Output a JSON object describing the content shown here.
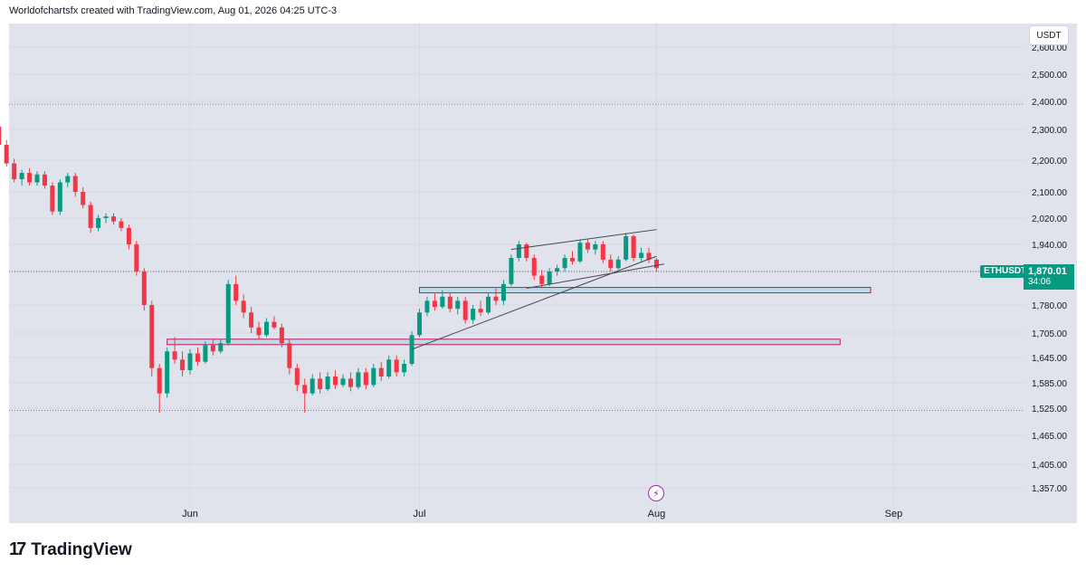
{
  "header": {
    "text": "Worldofchartsfx created with TradingView.com, Aug 01, 2026 04:25 UTC-3"
  },
  "currency_button": "USDT",
  "price_badge": {
    "symbol": "ETHUSDT",
    "price": "1,870.01",
    "countdown": "34:06",
    "color": "#089981"
  },
  "brand": {
    "name": "TradingView",
    "icon": "tradingview-logo-icon"
  },
  "event_icon": "lightning-event-icon",
  "colors": {
    "up": "#089981",
    "down": "#f23645",
    "background": "#e0e3eb",
    "zone": "#add8e6",
    "zone_border": "#c2185b"
  },
  "chart_data": {
    "type": "candlestick",
    "symbol": "ETHUSDT",
    "y_ticks": [
      "2,600.00",
      "2,500.00",
      "2,400.00",
      "2,300.00",
      "2,200.00",
      "2,100.00",
      "2,020.00",
      "1,940.00",
      "1,860.00",
      "1,780.00",
      "1,705.00",
      "1,645.00",
      "1,585.00",
      "1,525.00",
      "1,465.00",
      "1,405.00",
      "1,357.00"
    ],
    "x_ticks": [
      "Jun",
      "Jul",
      "Aug",
      "Sep"
    ],
    "last_price": 1870.01,
    "horizontal_levels": [
      2390,
      1520
    ],
    "zones": [
      {
        "name": "upper-support-zone",
        "x_start": "2026-07-01",
        "x_end": "2026-08-29",
        "y_low": 1810,
        "y_high": 1822
      },
      {
        "name": "lower-support-zone",
        "x_start": "2026-05-29",
        "x_end": "2026-08-25",
        "y_low": 1680,
        "y_high": 1690
      }
    ],
    "trendlines": [
      {
        "name": "upper-channel-line",
        "start": [
          "2026-07-13",
          1925
        ],
        "end": [
          "2026-08-01",
          1985
        ]
      },
      {
        "name": "rising-support-line",
        "start": [
          "2026-06-30",
          1665
        ],
        "end": [
          "2026-08-01",
          1905
        ]
      },
      {
        "name": "lower-channel-line",
        "start": [
          "2026-07-15",
          1820
        ],
        "end": [
          "2026-08-02",
          1882
        ]
      }
    ],
    "candles": [
      [
        "2026-05-02",
        2340,
        2370,
        2380,
        2330
      ],
      [
        "2026-05-03",
        2370,
        2380,
        2400,
        2355
      ],
      [
        "2026-05-04",
        2380,
        2330,
        2390,
        2320
      ],
      [
        "2026-05-05",
        2330,
        2270,
        2340,
        2255
      ],
      [
        "2026-05-06",
        2270,
        2310,
        2325,
        2260
      ],
      [
        "2026-05-07",
        2310,
        2250,
        2320,
        2240
      ],
      [
        "2026-05-08",
        2250,
        2190,
        2265,
        2180
      ],
      [
        "2026-05-09",
        2190,
        2140,
        2205,
        2130
      ],
      [
        "2026-05-10",
        2140,
        2160,
        2170,
        2120
      ],
      [
        "2026-05-11",
        2160,
        2130,
        2175,
        2120
      ],
      [
        "2026-05-12",
        2130,
        2155,
        2165,
        2120
      ],
      [
        "2026-05-13",
        2155,
        2120,
        2165,
        2110
      ],
      [
        "2026-05-14",
        2120,
        2040,
        2130,
        2030
      ],
      [
        "2026-05-15",
        2040,
        2130,
        2140,
        2030
      ],
      [
        "2026-05-16",
        2130,
        2150,
        2160,
        2115
      ],
      [
        "2026-05-17",
        2150,
        2100,
        2160,
        2085
      ],
      [
        "2026-05-18",
        2100,
        2060,
        2115,
        2050
      ],
      [
        "2026-05-19",
        2060,
        1990,
        2070,
        1975
      ],
      [
        "2026-05-20",
        1990,
        2020,
        2030,
        1980
      ],
      [
        "2026-05-21",
        2020,
        2025,
        2035,
        2005
      ],
      [
        "2026-05-22",
        2025,
        2010,
        2035,
        2000
      ],
      [
        "2026-05-23",
        2010,
        1990,
        2020,
        1980
      ],
      [
        "2026-05-24",
        1990,
        1940,
        2000,
        1925
      ],
      [
        "2026-05-25",
        1940,
        1860,
        1950,
        1850
      ],
      [
        "2026-05-26",
        1860,
        1780,
        1870,
        1765
      ],
      [
        "2026-05-27",
        1780,
        1620,
        1790,
        1600
      ],
      [
        "2026-05-28",
        1620,
        1560,
        1630,
        1515
      ],
      [
        "2026-05-29",
        1560,
        1660,
        1670,
        1550
      ],
      [
        "2026-05-30",
        1660,
        1640,
        1695,
        1630
      ],
      [
        "2026-05-31",
        1640,
        1615,
        1660,
        1600
      ],
      [
        "2026-06-01",
        1615,
        1655,
        1665,
        1605
      ],
      [
        "2026-06-02",
        1655,
        1635,
        1670,
        1625
      ],
      [
        "2026-06-03",
        1635,
        1675,
        1685,
        1630
      ],
      [
        "2026-06-04",
        1675,
        1660,
        1690,
        1650
      ],
      [
        "2026-06-05",
        1660,
        1680,
        1690,
        1655
      ],
      [
        "2026-06-06",
        1680,
        1830,
        1840,
        1675
      ],
      [
        "2026-06-07",
        1830,
        1790,
        1850,
        1780
      ],
      [
        "2026-06-08",
        1790,
        1760,
        1805,
        1745
      ],
      [
        "2026-06-09",
        1760,
        1720,
        1775,
        1705
      ],
      [
        "2026-06-10",
        1720,
        1700,
        1735,
        1690
      ],
      [
        "2026-06-11",
        1700,
        1735,
        1745,
        1695
      ],
      [
        "2026-06-12",
        1735,
        1720,
        1750,
        1715
      ],
      [
        "2026-06-13",
        1720,
        1680,
        1730,
        1670
      ],
      [
        "2026-06-14",
        1680,
        1620,
        1690,
        1605
      ],
      [
        "2026-06-15",
        1620,
        1580,
        1630,
        1565
      ],
      [
        "2026-06-16",
        1580,
        1560,
        1595,
        1515
      ],
      [
        "2026-06-17",
        1560,
        1595,
        1605,
        1555
      ],
      [
        "2026-06-18",
        1595,
        1570,
        1610,
        1560
      ],
      [
        "2026-06-19",
        1570,
        1600,
        1610,
        1565
      ],
      [
        "2026-06-20",
        1600,
        1580,
        1615,
        1570
      ],
      [
        "2026-06-21",
        1580,
        1595,
        1605,
        1575
      ],
      [
        "2026-06-22",
        1595,
        1575,
        1610,
        1565
      ],
      [
        "2026-06-23",
        1575,
        1610,
        1620,
        1570
      ],
      [
        "2026-06-24",
        1610,
        1580,
        1620,
        1570
      ],
      [
        "2026-06-25",
        1580,
        1620,
        1630,
        1575
      ],
      [
        "2026-06-26",
        1620,
        1600,
        1635,
        1590
      ],
      [
        "2026-06-27",
        1600,
        1640,
        1650,
        1595
      ],
      [
        "2026-06-28",
        1640,
        1610,
        1650,
        1600
      ],
      [
        "2026-06-29",
        1610,
        1630,
        1640,
        1600
      ],
      [
        "2026-06-30",
        1630,
        1700,
        1710,
        1625
      ],
      [
        "2026-07-01",
        1700,
        1760,
        1770,
        1695
      ],
      [
        "2026-07-02",
        1760,
        1790,
        1800,
        1750
      ],
      [
        "2026-07-03",
        1790,
        1775,
        1810,
        1765
      ],
      [
        "2026-07-04",
        1775,
        1800,
        1815,
        1770
      ],
      [
        "2026-07-05",
        1800,
        1770,
        1810,
        1760
      ],
      [
        "2026-07-06",
        1770,
        1790,
        1800,
        1755
      ],
      [
        "2026-07-07",
        1790,
        1740,
        1800,
        1730
      ],
      [
        "2026-07-08",
        1740,
        1770,
        1780,
        1730
      ],
      [
        "2026-07-09",
        1770,
        1760,
        1790,
        1750
      ],
      [
        "2026-07-10",
        1760,
        1800,
        1810,
        1755
      ],
      [
        "2026-07-11",
        1800,
        1790,
        1820,
        1780
      ],
      [
        "2026-07-12",
        1790,
        1830,
        1840,
        1780
      ],
      [
        "2026-07-13",
        1830,
        1900,
        1910,
        1825
      ],
      [
        "2026-07-14",
        1900,
        1940,
        1950,
        1890
      ],
      [
        "2026-07-15",
        1940,
        1900,
        1945,
        1890
      ],
      [
        "2026-07-16",
        1900,
        1850,
        1910,
        1840
      ],
      [
        "2026-07-17",
        1850,
        1830,
        1865,
        1820
      ],
      [
        "2026-07-18",
        1830,
        1860,
        1870,
        1825
      ],
      [
        "2026-07-19",
        1860,
        1870,
        1880,
        1850
      ],
      [
        "2026-07-20",
        1870,
        1900,
        1910,
        1860
      ],
      [
        "2026-07-21",
        1900,
        1890,
        1920,
        1880
      ],
      [
        "2026-07-22",
        1890,
        1945,
        1955,
        1885
      ],
      [
        "2026-07-23",
        1945,
        1925,
        1955,
        1915
      ],
      [
        "2026-07-24",
        1925,
        1940,
        1950,
        1910
      ],
      [
        "2026-07-25",
        1940,
        1895,
        1950,
        1885
      ],
      [
        "2026-07-26",
        1895,
        1870,
        1910,
        1860
      ],
      [
        "2026-07-27",
        1870,
        1895,
        1905,
        1865
      ],
      [
        "2026-07-28",
        1895,
        1965,
        1975,
        1890
      ],
      [
        "2026-07-29",
        1965,
        1900,
        1970,
        1890
      ],
      [
        "2026-07-30",
        1900,
        1915,
        1930,
        1890
      ],
      [
        "2026-07-31",
        1915,
        1895,
        1930,
        1885
      ],
      [
        "2026-08-01",
        1895,
        1870,
        1900,
        1860
      ]
    ]
  }
}
